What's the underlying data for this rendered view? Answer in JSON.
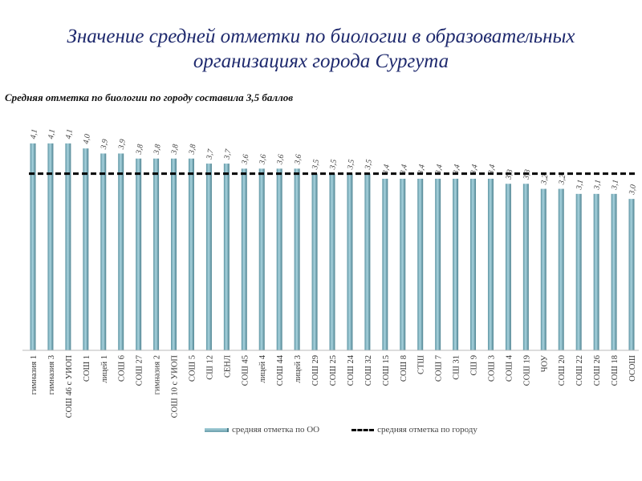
{
  "title_line1": "Значение средней отметки по биологии в образовательных",
  "title_line2": "организациях города Сургута",
  "subtitle": "Средняя отметка по биологии по городу составила 3,5 баллов",
  "chart_data": {
    "type": "bar",
    "categories": [
      "гимназия 1",
      "гимназия 3",
      "СОШ 46 с УИОП",
      "СОШ 1",
      "лицей 1",
      "СОШ 6",
      "СОШ 27",
      "гимназия 2",
      "СОШ 10 с УИОП",
      "СОШ 5",
      "СШ 12",
      "СЕНЛ",
      "СОШ 45",
      "лицей 4",
      "СОШ 44",
      "лицей 3",
      "СОШ 29",
      "СОШ 25",
      "СОШ 24",
      "СОШ 32",
      "СОШ 15",
      "СОШ 8",
      "СТШ",
      "СОШ 7",
      "СШ 31",
      "СШ 9",
      "СОШ 3",
      "СОШ 4",
      "СОШ 19",
      "ЧОУ",
      "СОШ 20",
      "СОШ 22",
      "СОШ 26",
      "СОШ 18",
      "ОСОШ"
    ],
    "series": [
      {
        "name": "средняя отметка по ОО",
        "values": [
          4.1,
          4.1,
          4.1,
          4.0,
          3.9,
          3.9,
          3.8,
          3.8,
          3.8,
          3.8,
          3.7,
          3.7,
          3.6,
          3.6,
          3.6,
          3.6,
          3.5,
          3.5,
          3.5,
          3.5,
          3.4,
          3.4,
          3.4,
          3.4,
          3.4,
          3.4,
          3.4,
          3.3,
          3.3,
          3.2,
          3.2,
          3.1,
          3.1,
          3.1,
          3.0
        ]
      },
      {
        "name": "средняя отметка по городу",
        "type": "line",
        "value": 3.5
      }
    ],
    "ylim": [
      0,
      4.4
    ],
    "grid": false,
    "legend": "bottom",
    "colors": {
      "bar": "#7fb2be",
      "city_line": "#000000"
    }
  }
}
